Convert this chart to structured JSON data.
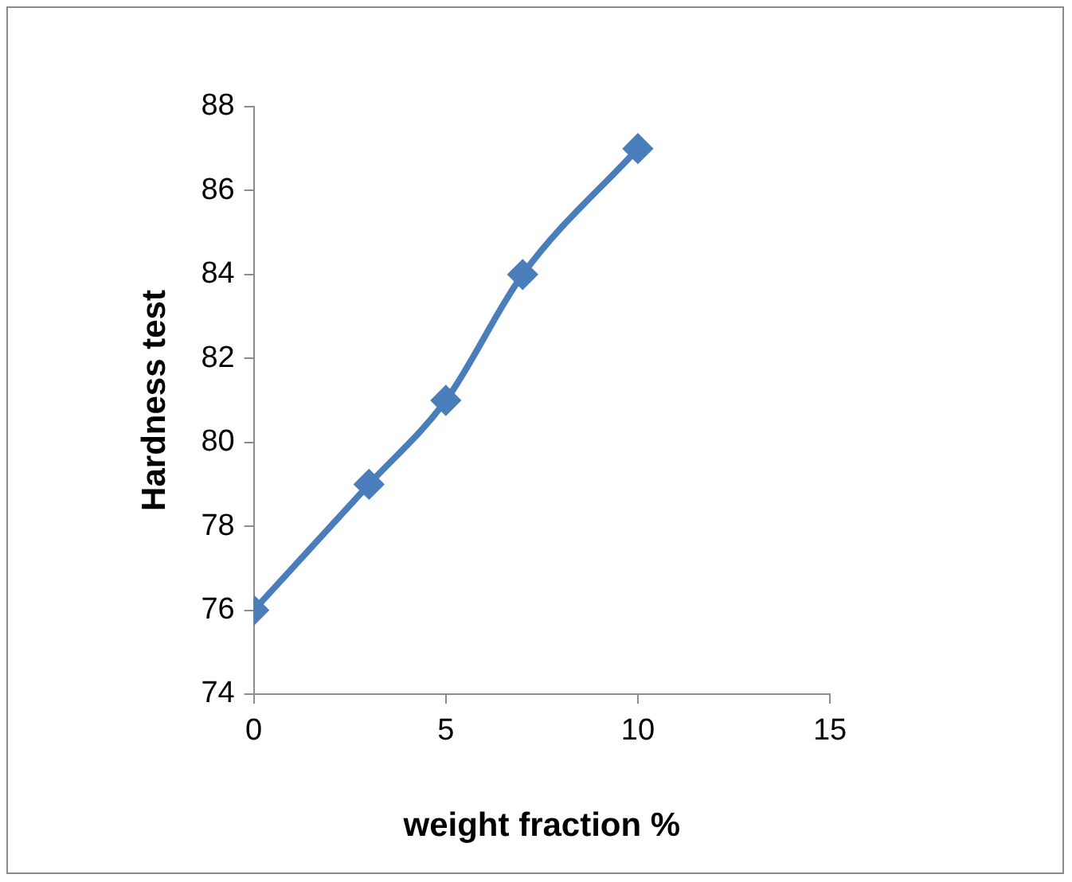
{
  "chart_data": {
    "type": "line",
    "xlabel": "weight fraction %",
    "ylabel": "Hardness test",
    "x": [
      0,
      3,
      5,
      7,
      10
    ],
    "series": [
      {
        "color": "#4a7ebb",
        "values": [
          76,
          79,
          81,
          84,
          87
        ]
      }
    ],
    "xlim": [
      0,
      15
    ],
    "xticks": [
      0,
      5,
      10,
      15
    ],
    "ylim": [
      74,
      88
    ],
    "yticks": [
      74,
      76,
      78,
      80,
      82,
      84,
      86,
      88
    ],
    "grid": false,
    "legend": false,
    "marker": "diamond",
    "line_style": "solid"
  }
}
